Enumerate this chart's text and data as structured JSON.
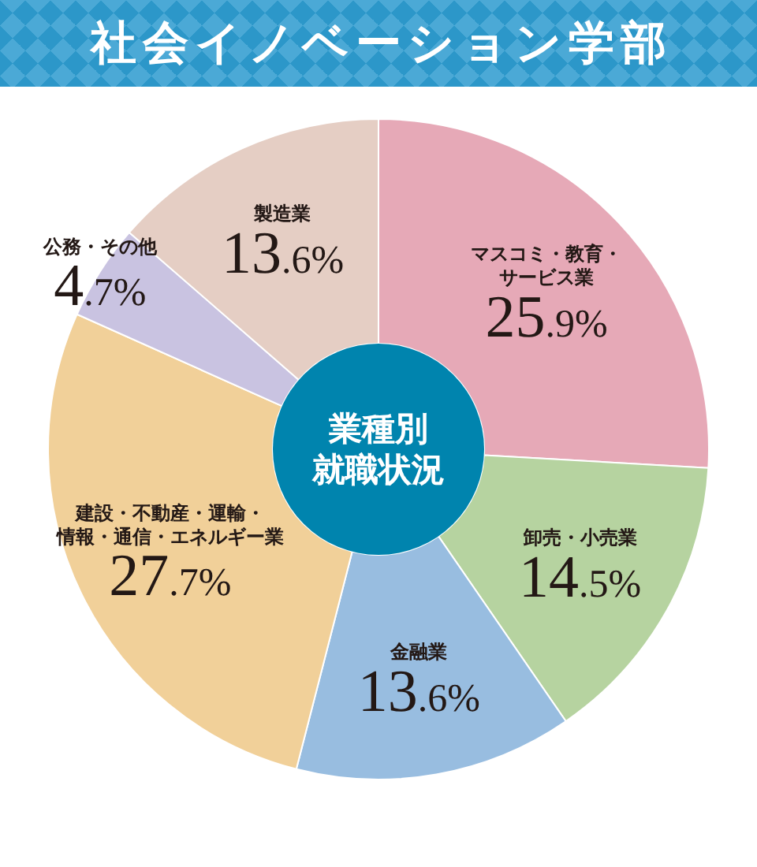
{
  "chart_data": {
    "type": "donut",
    "title": "社会イノベーション学部",
    "subtitle": "業種別就職状況",
    "categories": [
      "マスコミ・教育・サービス業",
      "卸売・小売業",
      "金融業",
      "建設・不動産・運輸・情報・通信・エネルギー業",
      "公務・その他",
      "製造業"
    ],
    "values": [
      25.9,
      14.5,
      13.6,
      27.7,
      4.7,
      13.6
    ],
    "colors": [
      "#e6a9b7",
      "#b6d3a0",
      "#98bde0",
      "#f1d099",
      "#c9c3e1",
      "#e5cec4"
    ],
    "value_labels": [
      "25.9%",
      "14.5%",
      "13.6%",
      "27.7%",
      "4.7%",
      "13.6%"
    ]
  }
}
